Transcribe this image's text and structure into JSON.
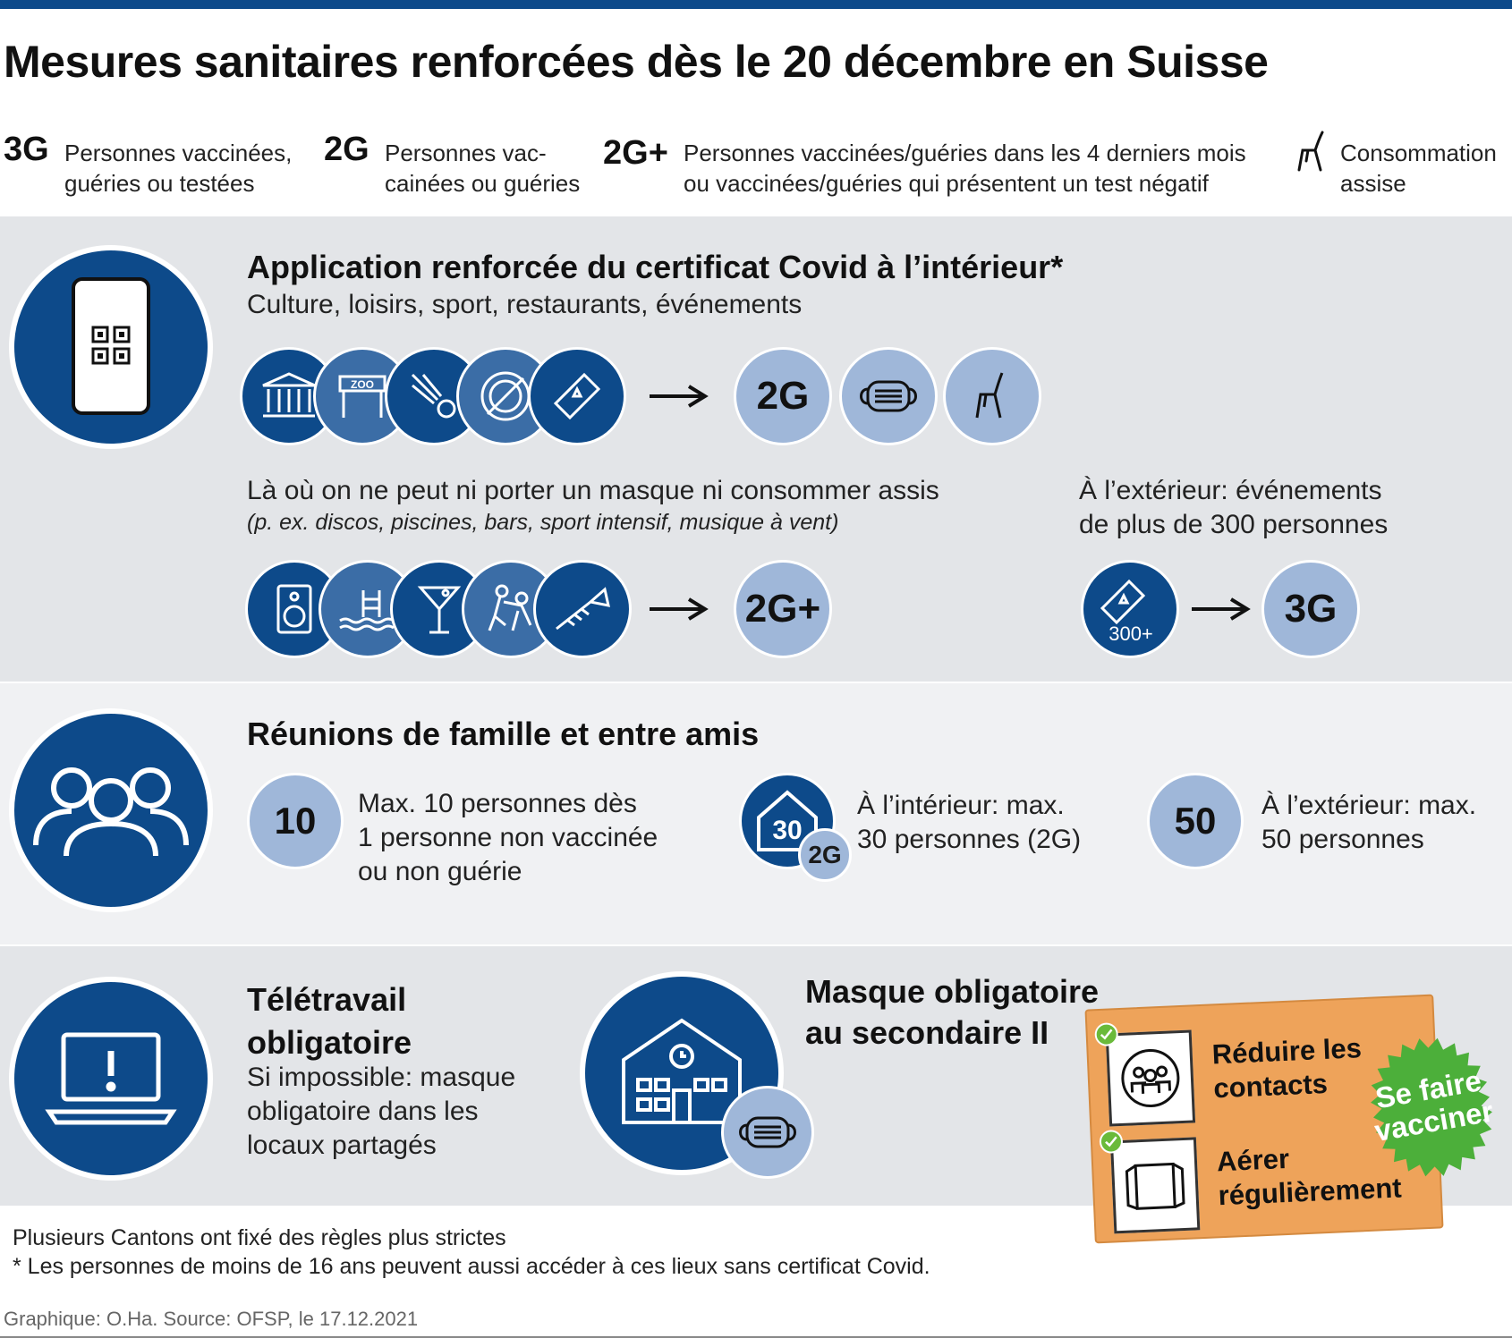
{
  "title": "Mesures sanitaires renforcées dès le 20 décembre en Suisse",
  "legend": [
    {
      "code": "3G",
      "lines": [
        "Personnes vaccinées,",
        "guéries ou testées"
      ]
    },
    {
      "code": "2G",
      "lines": [
        "Personnes vac-",
        "cainées ou guéries"
      ]
    },
    {
      "code": "2G+",
      "lines": [
        "Personnes vaccinées/guéries dans les 4 derniers mois",
        "ou vaccinées/guéries qui présentent un test négatif"
      ]
    },
    {
      "icon": "chair-icon",
      "lines": [
        "Consommation",
        "assise"
      ]
    }
  ],
  "section1": {
    "title": "Application renforcée du certificat Covid à l’intérieur*",
    "subtitle": "Culture, loisirs, sport, restaurants, événements",
    "row1_icons": [
      "museum-icon",
      "zoo-icon",
      "shuttlecock-icon",
      "plate-icon",
      "ticket-icon"
    ],
    "zoo_label": "ZOO",
    "row1_result": "2G",
    "row1_extras": [
      "mask-icon",
      "chair-icon"
    ],
    "row2_text": "Là où on ne peut ni porter un masque ni consommer assis",
    "row2_examples": "(p. ex. discos, piscines, bars, sport intensif, musique à vent)",
    "row2_icons": [
      "speaker-icon",
      "pool-icon",
      "cocktail-icon",
      "wrestling-icon",
      "trumpet-icon"
    ],
    "row2_result": "2G+",
    "outdoor_lines": [
      "À l’extérieur: événements",
      "de plus de 300 personnes"
    ],
    "outdoor_ticket_label": "300+",
    "outdoor_result": "3G"
  },
  "section2": {
    "title": "Réunions de famille et entre amis",
    "item1": {
      "number": "10",
      "lines": [
        "Max. 10 personnes dès",
        "1 personne non vaccinée",
        "ou non guérie"
      ]
    },
    "item2": {
      "house_number": "30",
      "badge": "2G",
      "lines": [
        "À l’intérieur: max.",
        "30 personnes (2G)"
      ]
    },
    "item3": {
      "number": "50",
      "lines": [
        "À l’extérieur: max.",
        "50 personnes"
      ]
    }
  },
  "section3": {
    "telework_title": [
      "Télétravail",
      "obligatoire"
    ],
    "telework_text": [
      "Si impossible: masque",
      "obligatoire dans les",
      "locaux partagés"
    ],
    "mask_title": [
      "Masque obligatoire",
      "au secondaire II"
    ]
  },
  "advice": {
    "item1": [
      "Réduire les",
      "contacts"
    ],
    "item2": [
      "Aérer",
      "régulièrement"
    ],
    "seal": [
      "Se faire",
      "vacciner"
    ]
  },
  "footer": {
    "line1": "Plusieurs Cantons ont fixé des règles plus strictes",
    "line2": "* Les personnes de moins de 16 ans peuvent aussi accéder à ces lieux sans certificat Covid.",
    "source": "Graphique: O.Ha. Source: OFSP, le 17.12.2021"
  },
  "colors": {
    "dark_blue": "#0d4a8a",
    "medium_blue": "#3b6da6",
    "light_blue": "#9fb7d9",
    "orange": "#eea35a",
    "green": "#4caf3a"
  }
}
